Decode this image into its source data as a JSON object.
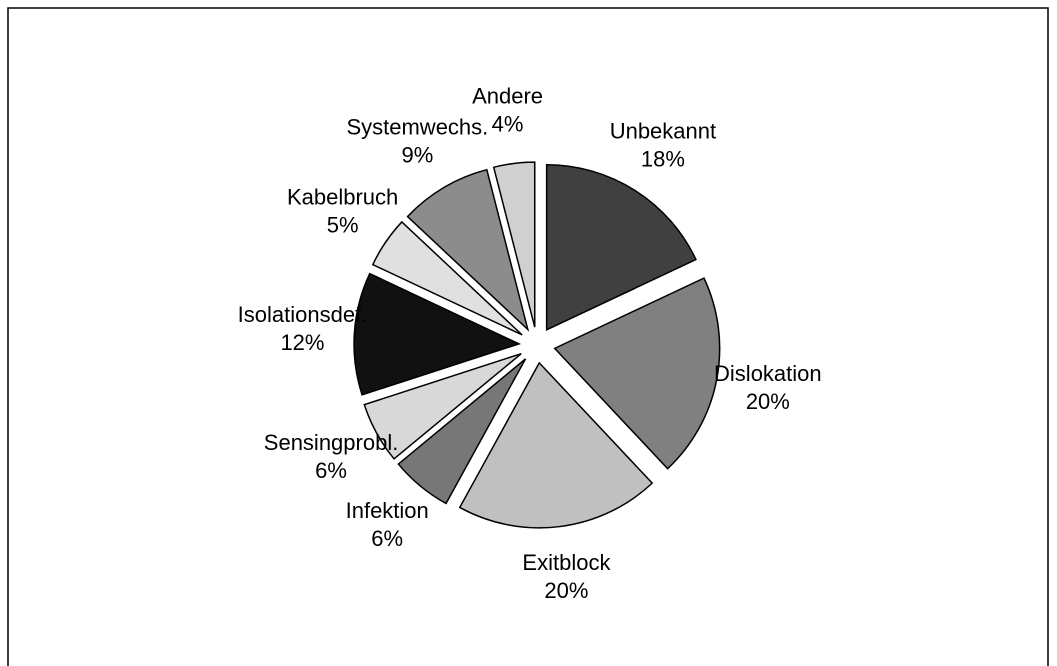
{
  "chart_data": {
    "type": "pie",
    "categories": [
      "Unbekannt",
      "Dislokation",
      "Exitblock",
      "Infektion",
      "Sensingprobl.",
      "Isolationsdef.",
      "Kabelbruch",
      "Systemwechs.",
      "Andere"
    ],
    "values": [
      18,
      20,
      20,
      6,
      6,
      12,
      5,
      9,
      4
    ],
    "value_labels": [
      "18%",
      "20%",
      "20%",
      "6%",
      "6%",
      "12%",
      "5%",
      "9%",
      "4%"
    ],
    "colors": [
      "#404040",
      "#808080",
      "#c0c0c0",
      "#777777",
      "#d8d8d8",
      "#111111",
      "#e0e0e0",
      "#8c8c8c",
      "#d0d0d0"
    ]
  }
}
